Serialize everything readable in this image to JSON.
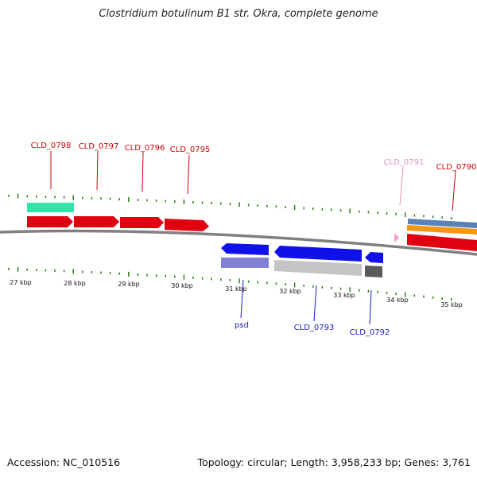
{
  "title": "Clostridium botulinum B1 str. Okra, complete genome",
  "footer": {
    "accession": "Accession: NC_010516",
    "topology": "Topology: circular; Length: 3,958,233 bp; Genes: 3,761"
  },
  "colors": {
    "backbone": "#808080",
    "tick": "#2e7d1a",
    "gene_red": "#e0000f",
    "gene_blue": "#1010e8",
    "gene_pink": "#f29bd0",
    "teal": "#2fe6a8",
    "lavender": "#8080d8",
    "light_gray": "#c4c4c4",
    "dark_gray": "#5a5a5a",
    "steel_blue": "#5a82b8",
    "orange": "#f5960f",
    "label_red": "#cc0000",
    "label_blue": "#1a1acc",
    "label_pink": "#e890c0"
  },
  "scale_labels": [
    "27 kbp",
    "28 kbp",
    "29 kbp",
    "30 kbp",
    "31 kbp",
    "32 kbp",
    "33 kbp",
    "34 kbp",
    "35 kbp"
  ],
  "gene_labels": [
    {
      "text": "CLD_0798",
      "color": "label_red"
    },
    {
      "text": "CLD_0797",
      "color": "label_red"
    },
    {
      "text": "CLD_0796",
      "color": "label_red"
    },
    {
      "text": "CLD_0795",
      "color": "label_red"
    },
    {
      "text": "CLD_0791",
      "color": "label_pink"
    },
    {
      "text": "CLD_0790",
      "color": "label_red"
    },
    {
      "text": "psd",
      "color": "label_blue"
    },
    {
      "text": "CLD_0793",
      "color": "label_blue"
    },
    {
      "text": "CLD_0792",
      "color": "label_blue"
    }
  ]
}
